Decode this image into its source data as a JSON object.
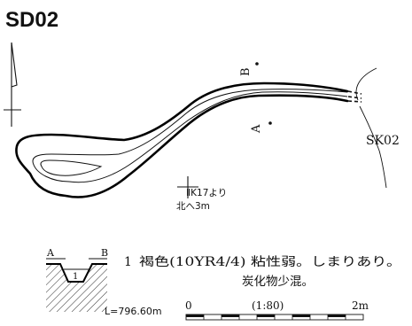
{
  "title": "SD02",
  "labels": {
    "point_a": "A",
    "point_b": "B",
    "sk": "SK02",
    "ref_line1": "ⅡK17より",
    "ref_line2": "北へ3m"
  },
  "section": {
    "left_label": "A",
    "right_label": "B",
    "layer_number": "1",
    "elevation": "L=796.60m"
  },
  "legend": {
    "number": "1",
    "line1": "褐色(10YR4/4)  粘性弱。しまりあり。",
    "line2": "炭化物少混。"
  },
  "scale": {
    "start": "0",
    "ratio": "(1:80)",
    "end": "2m"
  }
}
